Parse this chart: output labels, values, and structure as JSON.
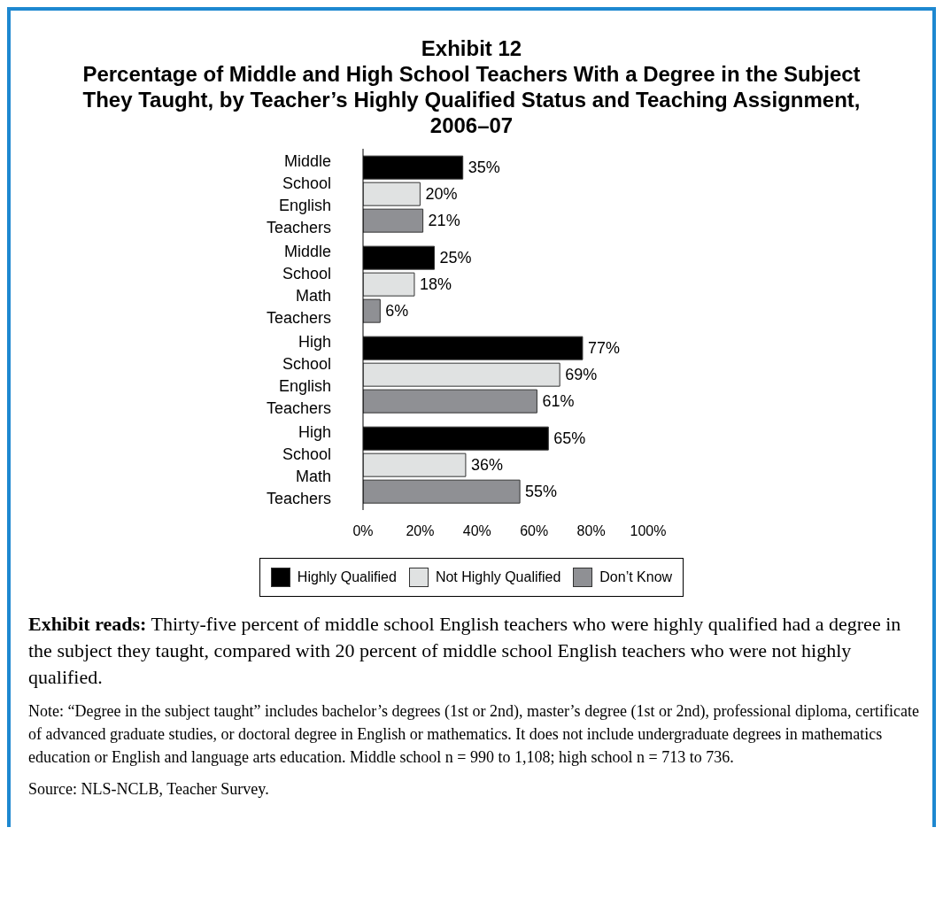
{
  "chart_data": {
    "type": "bar",
    "orientation": "horizontal",
    "title": "Exhibit 12",
    "subtitle": "Percentage of Middle and High School Teachers With a Degree in the Subject They Taught, by Teacher’s Highly Qualified Status and Teaching Assignment, 2006–07",
    "categories": [
      "Middle School English Teachers",
      "Middle School Math Teachers",
      "High School English Teachers",
      "High School Math Teachers"
    ],
    "series": [
      {
        "name": "Highly Qualified",
        "color": "#000000",
        "values": [
          35,
          25,
          77,
          65
        ],
        "value_labels": [
          "35%",
          "25%",
          "77%",
          "65%"
        ]
      },
      {
        "name": "Not Highly Qualified",
        "color": "#e0e2e2",
        "values": [
          20,
          18,
          69,
          36
        ],
        "value_labels": [
          "20%",
          "18%",
          "69%",
          "36%"
        ]
      },
      {
        "name": "Don’t Know",
        "color": "#8f9094",
        "values": [
          21,
          6,
          61,
          55
        ],
        "value_labels": [
          "21%",
          "6%",
          "61%",
          "55%"
        ]
      }
    ],
    "xlim": [
      0,
      100
    ],
    "xticks": [
      {
        "value": 0,
        "label": "0%"
      },
      {
        "value": 20,
        "label": "20%"
      },
      {
        "value": 40,
        "label": "40%"
      },
      {
        "value": 60,
        "label": "60%"
      },
      {
        "value": 80,
        "label": "80%"
      },
      {
        "value": 100,
        "label": "100%"
      }
    ],
    "grid": false,
    "legend": "bottom",
    "annotations": [
      "Exhibit reads: Thirty-five percent of middle school English teachers who were highly qualified had a degree in the subject they taught, compared with 20 percent of middle school English teachers who were not highly qualified.",
      "Note: “Degree in the subject taught” includes bachelor’s degrees (1st or 2nd), master’s degree (1st or 2nd), professional diploma, certificate of advanced graduate studies, or doctoral degree in English or mathematics. It does not include undergraduate degrees in mathematics education or English and language arts education. Middle school n = 990 to 1,108; high school n = 713 to 736.",
      "Source: NLS-NCLB, Teacher Survey."
    ]
  }
}
